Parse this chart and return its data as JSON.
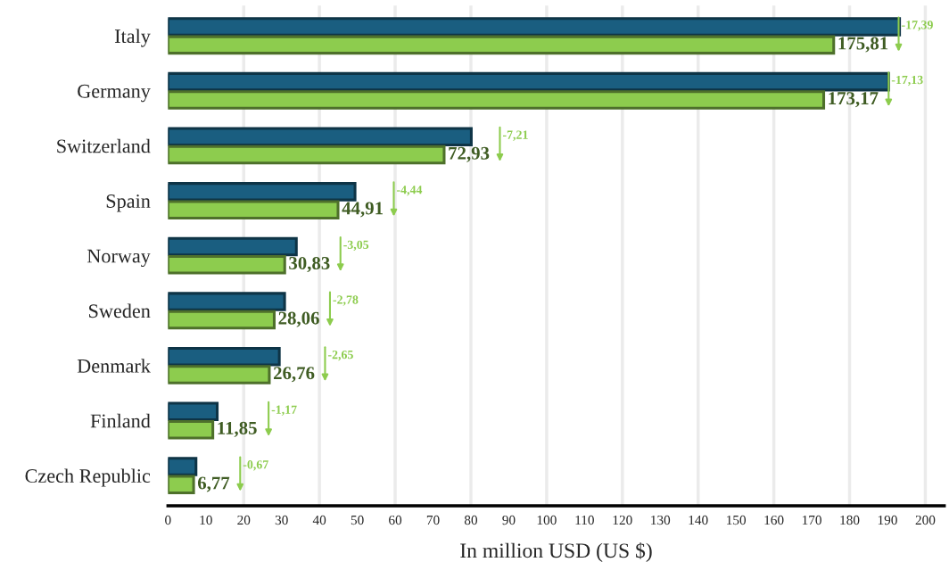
{
  "chart_data": {
    "type": "bar",
    "orientation": "horizontal",
    "xlabel": "In million USD (US $)",
    "categories": [
      "Italy",
      "Germany",
      "Switzerland",
      "Spain",
      "Norway",
      "Sweden",
      "Denmark",
      "Finland",
      "Czech Republic"
    ],
    "series": [
      {
        "color": "#1a5e80",
        "values": [
          193.2,
          190.3,
          80.1,
          49.4,
          33.9,
          30.8,
          29.4,
          13.0,
          7.4
        ]
      },
      {
        "color": "#8dcc4e",
        "values": [
          175.81,
          173.17,
          72.93,
          44.91,
          30.83,
          28.06,
          26.76,
          11.85,
          6.77
        ],
        "value_labels": [
          "175,81",
          "173,17",
          "72,93",
          "44,91",
          "30,83",
          "28,06",
          "26,76",
          "11,85",
          "6,77"
        ]
      }
    ],
    "annotations": [
      "-17,39",
      "-17,13",
      "-7,21",
      "-4,44",
      "-3,05",
      "-2,78",
      "-2,65",
      "-1,17",
      "-0,67"
    ],
    "xlim": [
      0,
      205
    ],
    "xticks": [
      0,
      10,
      20,
      30,
      40,
      50,
      60,
      70,
      80,
      90,
      100,
      110,
      120,
      130,
      140,
      150,
      160,
      170,
      180,
      190,
      200
    ],
    "grid": "x"
  }
}
